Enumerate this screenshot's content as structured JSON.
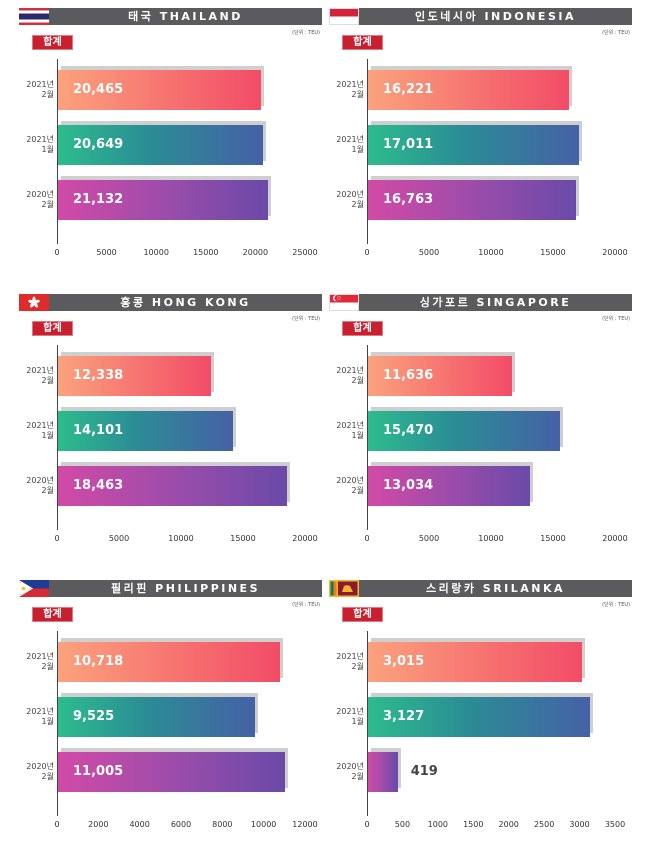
{
  "colors": {
    "header_bg": "#5b5b5d",
    "badge_bg": "#c8202f",
    "bar_2021_feb": [
      "#fba27d",
      "#f24c67"
    ],
    "bar_2021_jan": [
      "#2cbc8d",
      "#4561a6"
    ],
    "bar_2020_feb": [
      "#d24aa7",
      "#6a4aa8"
    ]
  },
  "chart_data": [
    {
      "type": "bar",
      "orientation": "horizontal",
      "flag": "thailand-flag-icon",
      "title": "태국 THAILAND",
      "unit_note": "(단위 : TEU)",
      "badge": "합계",
      "categories": [
        [
          "2021년",
          "2월"
        ],
        [
          "2021년",
          "1월"
        ],
        [
          "2020년",
          "2월"
        ]
      ],
      "values": [
        20465,
        20649,
        21132
      ],
      "value_labels": [
        "20,465",
        "20,649",
        "21,132"
      ],
      "xlim": [
        0,
        25000
      ],
      "ticks": [
        0,
        5000,
        10000,
        15000,
        20000,
        25000
      ]
    },
    {
      "type": "bar",
      "orientation": "horizontal",
      "flag": "indonesia-flag-icon",
      "title": "인도네시아 INDONESIA",
      "unit_note": "(단위 : TEU)",
      "badge": "합계",
      "categories": [
        [
          "2021년",
          "2월"
        ],
        [
          "2021년",
          "1월"
        ],
        [
          "2020년",
          "2월"
        ]
      ],
      "values": [
        16221,
        17011,
        16763
      ],
      "value_labels": [
        "16,221",
        "17,011",
        "16,763"
      ],
      "xlim": [
        0,
        20000
      ],
      "ticks": [
        0,
        5000,
        10000,
        15000,
        20000
      ]
    },
    {
      "type": "bar",
      "orientation": "horizontal",
      "flag": "hong-kong-flag-icon",
      "title": "홍콩 HONG KONG",
      "unit_note": "(단위 : TEU)",
      "badge": "합계",
      "categories": [
        [
          "2021년",
          "2월"
        ],
        [
          "2021년",
          "1월"
        ],
        [
          "2020년",
          "2월"
        ]
      ],
      "values": [
        12338,
        14101,
        18463
      ],
      "value_labels": [
        "12,338",
        "14,101",
        "18,463"
      ],
      "xlim": [
        0,
        20000
      ],
      "ticks": [
        0,
        5000,
        10000,
        15000,
        20000
      ]
    },
    {
      "type": "bar",
      "orientation": "horizontal",
      "flag": "singapore-flag-icon",
      "title": "싱가포르 SINGAPORE",
      "unit_note": "(단위 : TEU)",
      "badge": "합계",
      "categories": [
        [
          "2021년",
          "2월"
        ],
        [
          "2021년",
          "1월"
        ],
        [
          "2020년",
          "2월"
        ]
      ],
      "values": [
        11636,
        15470,
        13034
      ],
      "value_labels": [
        "11,636",
        "15,470",
        "13,034"
      ],
      "xlim": [
        0,
        20000
      ],
      "ticks": [
        0,
        5000,
        10000,
        15000,
        20000
      ]
    },
    {
      "type": "bar",
      "orientation": "horizontal",
      "flag": "philippines-flag-icon",
      "title": "필리핀 PHILIPPINES",
      "unit_note": "(단위 : TEU)",
      "badge": "합계",
      "categories": [
        [
          "2021년",
          "2월"
        ],
        [
          "2021년",
          "1월"
        ],
        [
          "2020년",
          "2월"
        ]
      ],
      "values": [
        10718,
        9525,
        11005
      ],
      "value_labels": [
        "10,718",
        "9,525",
        "11,005"
      ],
      "xlim": [
        0,
        12000
      ],
      "ticks": [
        0,
        2000,
        4000,
        6000,
        8000,
        10000,
        12000
      ]
    },
    {
      "type": "bar",
      "orientation": "horizontal",
      "flag": "sri-lanka-flag-icon",
      "title": "스리랑카 SRILANKA",
      "unit_note": "(단위 : TEU)",
      "badge": "합계",
      "categories": [
        [
          "2021년",
          "2월"
        ],
        [
          "2021년",
          "1월"
        ],
        [
          "2020년",
          "2월"
        ]
      ],
      "values": [
        3015,
        3127,
        419
      ],
      "value_labels": [
        "3,015",
        "3,127",
        "419"
      ],
      "xlim": [
        0,
        3500
      ],
      "ticks": [
        0,
        500,
        1000,
        1500,
        2000,
        2500,
        3000,
        3500
      ]
    }
  ]
}
